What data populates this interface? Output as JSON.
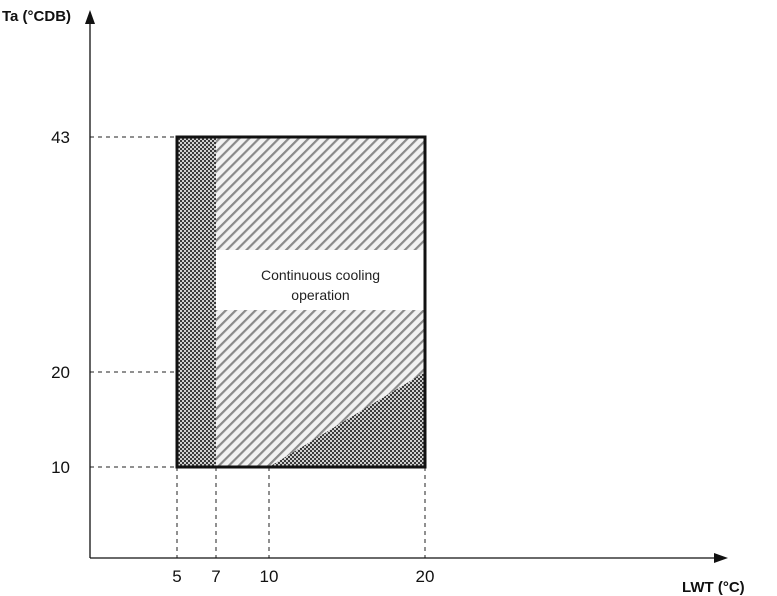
{
  "chart_data": {
    "type": "area",
    "title": "",
    "xlabel": "LWT (°C)",
    "ylabel": "Ta (°CDB)",
    "x_ticks": [
      5,
      7,
      10,
      20
    ],
    "y_ticks": [
      10,
      20,
      43
    ],
    "x_tick_labels": [
      "5",
      "7",
      "10",
      "20"
    ],
    "y_tick_labels": [
      "10",
      "20",
      "43"
    ],
    "envelope": {
      "x": [
        5,
        20
      ],
      "y": [
        10,
        43
      ]
    },
    "regions": [
      {
        "pattern": "checkered",
        "x": [
          5,
          7
        ],
        "y": [
          10,
          43
        ]
      },
      {
        "pattern": "hatched",
        "x": [
          7,
          20
        ],
        "y": [
          10,
          43
        ]
      },
      {
        "pattern": "checkered",
        "polygon": [
          [
            10,
            10
          ],
          [
            20,
            10
          ],
          [
            20,
            20
          ]
        ]
      }
    ],
    "annotation": {
      "line1": "Continuous cooling",
      "line2": "operation",
      "x_range": [
        7,
        20
      ],
      "y_range": [
        27,
        34
      ]
    },
    "grid": false
  }
}
